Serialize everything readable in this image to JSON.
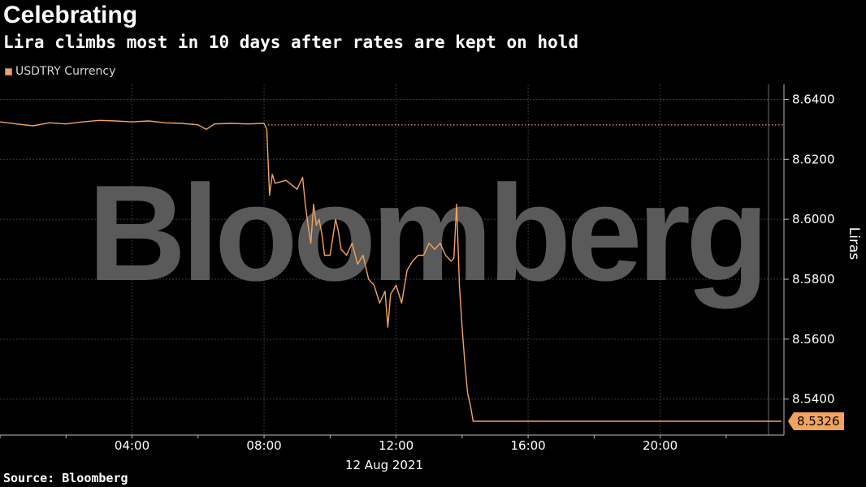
{
  "header": {
    "title": "Celebrating",
    "subtitle": "Lira climbs most in 10 days after rates are kept on hold"
  },
  "legend": {
    "label": "USDTRY Currency"
  },
  "source": "Source: Bloomberg",
  "watermark": "Bloomberg",
  "colors": {
    "series": "#f4a35c",
    "background": "#000000",
    "grid": "#3a3a3a",
    "watermark": "#5a5a5a"
  },
  "chart_data": {
    "type": "line",
    "title": "Celebrating",
    "subtitle": "Lira climbs most in 10 days after rates are kept on hold",
    "ylabel": "Liras",
    "xlabel": "12 Aug 2021",
    "ylim": [
      8.528,
      8.645
    ],
    "xlim": [
      "00:00",
      "23:45"
    ],
    "grid": true,
    "legend_position": "top-left",
    "x_ticks": [
      "04:00",
      "08:00",
      "12:00",
      "16:00",
      "20:00"
    ],
    "y_ticks": [
      "8.6400",
      "8.6200",
      "8.6000",
      "8.5800",
      "8.5600",
      "8.5400"
    ],
    "reference_line": {
      "value": 8.6315,
      "style": "dotted"
    },
    "last_value_label": "8.5326",
    "series": [
      {
        "name": "USDTRY Currency",
        "x": [
          "00:00",
          "00:30",
          "01:00",
          "01:30",
          "02:00",
          "02:30",
          "03:00",
          "03:30",
          "04:00",
          "04:30",
          "05:00",
          "05:30",
          "06:00",
          "06:15",
          "06:30",
          "07:00",
          "07:30",
          "08:00",
          "08:05",
          "08:10",
          "08:15",
          "08:20",
          "08:40",
          "09:00",
          "09:10",
          "09:15",
          "09:20",
          "09:25",
          "09:30",
          "09:35",
          "09:40",
          "09:45",
          "09:50",
          "10:00",
          "10:10",
          "10:15",
          "10:20",
          "10:30",
          "10:40",
          "10:50",
          "11:00",
          "11:10",
          "11:20",
          "11:30",
          "11:40",
          "11:45",
          "11:50",
          "12:00",
          "12:10",
          "12:20",
          "12:30",
          "12:40",
          "12:50",
          "13:00",
          "13:10",
          "13:20",
          "13:30",
          "13:40",
          "13:45",
          "13:50",
          "13:55",
          "14:00",
          "14:05",
          "14:10",
          "14:15",
          "14:20",
          "14:30",
          "15:00",
          "16:00",
          "18:00",
          "20:00",
          "22:00",
          "23:40"
        ],
        "values": [
          8.6325,
          8.6318,
          8.6312,
          8.6322,
          8.6318,
          8.6325,
          8.633,
          8.6328,
          8.6325,
          8.6328,
          8.6322,
          8.632,
          8.6315,
          8.63,
          8.6318,
          8.632,
          8.6318,
          8.632,
          8.63,
          8.608,
          8.615,
          8.612,
          8.613,
          8.61,
          8.614,
          8.605,
          8.598,
          8.592,
          8.605,
          8.598,
          8.6,
          8.595,
          8.588,
          8.588,
          8.6,
          8.596,
          8.59,
          8.588,
          8.592,
          8.585,
          8.588,
          8.58,
          8.578,
          8.572,
          8.576,
          8.564,
          8.575,
          8.578,
          8.572,
          8.583,
          8.586,
          8.588,
          8.588,
          8.592,
          8.59,
          8.592,
          8.588,
          8.586,
          8.587,
          8.605,
          8.578,
          8.564,
          8.552,
          8.542,
          8.538,
          8.5326,
          8.5326,
          8.5326,
          8.5326,
          8.5326,
          8.5326,
          8.5326,
          8.5326
        ]
      }
    ]
  }
}
